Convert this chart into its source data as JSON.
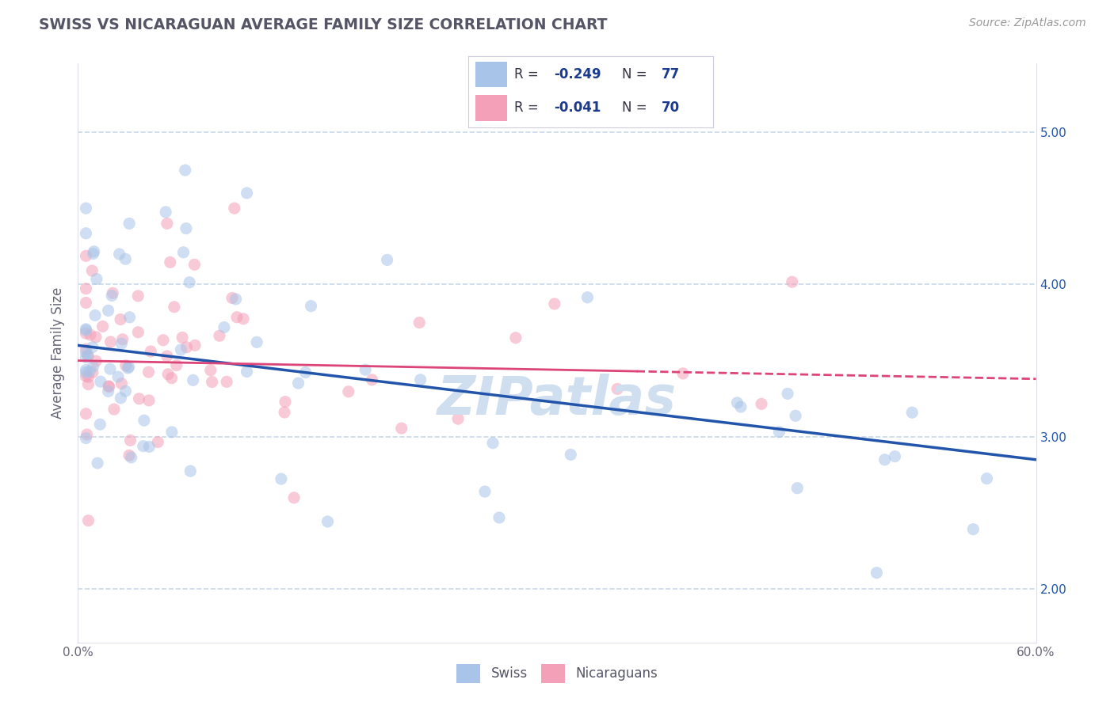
{
  "title": "SWISS VS NICARAGUAN AVERAGE FAMILY SIZE CORRELATION CHART",
  "source_text": "Source: ZipAtlas.com",
  "ylabel": "Average Family Size",
  "xlim": [
    0.0,
    0.6
  ],
  "ylim": [
    1.65,
    5.45
  ],
  "yticks": [
    2.0,
    3.0,
    4.0,
    5.0
  ],
  "xticks": [
    0.0,
    0.1,
    0.2,
    0.3,
    0.4,
    0.5,
    0.6
  ],
  "xtick_labels": [
    "0.0%",
    "",
    "",
    "",
    "",
    "",
    "60.0%"
  ],
  "ytick_labels": [
    "2.00",
    "3.00",
    "4.00",
    "5.00"
  ],
  "swiss_color": "#a8c4e8",
  "nic_color": "#f4a0b8",
  "swiss_line_color": "#2255aa",
  "nic_line_color": "#dd4477",
  "background_color": "#ffffff",
  "grid_color": "#c8d8e8",
  "title_color": "#555566",
  "watermark_color": "#d0dff0",
  "swiss_trend_x": [
    0.0,
    0.6
  ],
  "swiss_trend_y": [
    3.6,
    2.85
  ],
  "nic_trend_x": [
    0.0,
    0.6
  ],
  "nic_trend_y": [
    3.5,
    3.38
  ],
  "marker_size": 120,
  "marker_alpha": 0.55,
  "legend_text_color": "#1a3a8e",
  "r_label_color": "#333333"
}
